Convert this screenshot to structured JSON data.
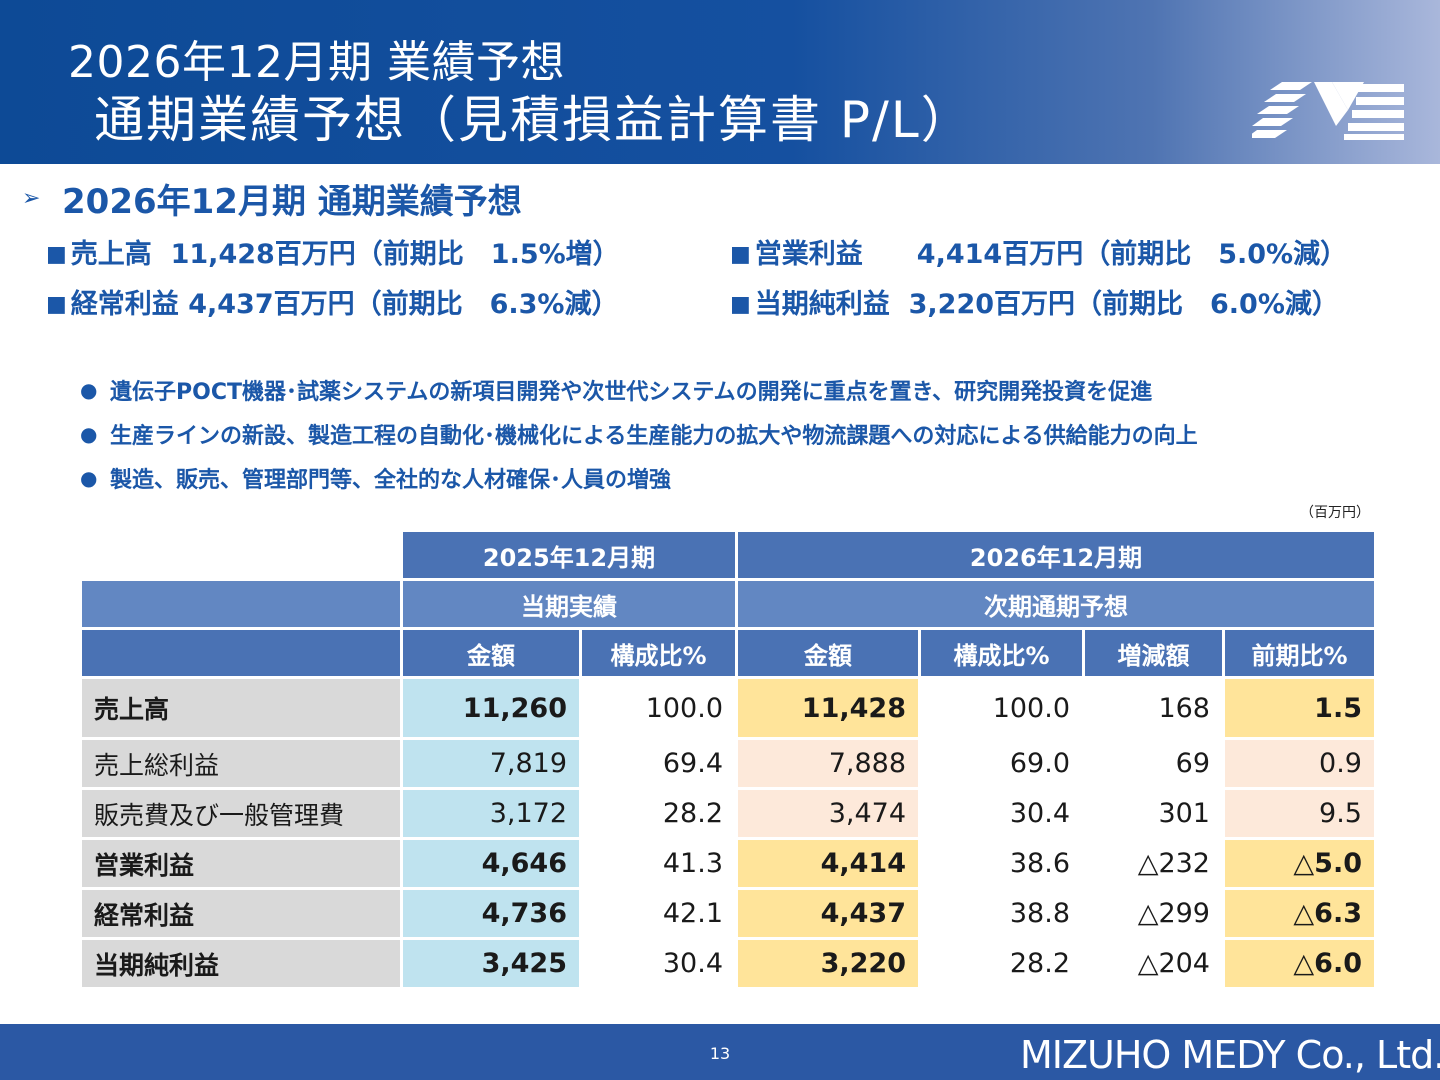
{
  "header": {
    "title_line1": "2026年12月期 業績予想",
    "title_line2": "通期業績予想（見積損益計算書 P/L）"
  },
  "section": {
    "arrow": "➢",
    "heading": "2026年12月期 通期業績予想"
  },
  "kpis": [
    {
      "marker": "■",
      "label": "売上高",
      "value": "11,428百万円（前期比　1.5%増）"
    },
    {
      "marker": "■",
      "label": "営業利益",
      "value": "4,414百万円（前期比　5.0%減）"
    },
    {
      "marker": "■",
      "label": "経常利益",
      "value": "4,437百万円（前期比　6.3%減）"
    },
    {
      "marker": "■",
      "label": "当期純利益",
      "value": "3,220百万円（前期比　6.0%減）"
    }
  ],
  "bullets": [
    {
      "marker": "●",
      "text": "遺伝子POCT機器･試薬システムの新項目開発や次世代システムの開発に重点を置き、研究開発投資を促進"
    },
    {
      "marker": "●",
      "text": "生産ラインの新設、製造工程の自動化･機械化による生産能力の拡大や物流課題への対応による供給能力の向上"
    },
    {
      "marker": "●",
      "text": "製造、販売、管理部門等、全社的な人材確保･人員の増強"
    }
  ],
  "table": {
    "unit": "（百万円）",
    "period_prev": "2025年12月期",
    "period_next": "2026年12月期",
    "sub_prev": "当期実績",
    "sub_next": "次期通期予想",
    "cols": [
      "金額",
      "構成比%",
      "金額",
      "構成比%",
      "増減額",
      "前期比%"
    ],
    "rows": [
      {
        "label": "売上高",
        "prev_amount": "11,260",
        "prev_ratio": "100.0",
        "next_amount": "11,428",
        "next_ratio": "100.0",
        "change": "168",
        "yoy": "1.5"
      },
      {
        "label": "売上総利益",
        "prev_amount": "7,819",
        "prev_ratio": "69.4",
        "next_amount": "7,888",
        "next_ratio": "69.0",
        "change": "69",
        "yoy": "0.9"
      },
      {
        "label": "販売費及び一般管理費",
        "prev_amount": "3,172",
        "prev_ratio": "28.2",
        "next_amount": "3,474",
        "next_ratio": "30.4",
        "change": "301",
        "yoy": "9.5"
      },
      {
        "label": "営業利益",
        "prev_amount": "4,646",
        "prev_ratio": "41.3",
        "next_amount": "4,414",
        "next_ratio": "38.6",
        "change": "△232",
        "yoy": "△5.0"
      },
      {
        "label": "経常利益",
        "prev_amount": "4,736",
        "prev_ratio": "42.1",
        "next_amount": "4,437",
        "next_ratio": "38.8",
        "change": "△299",
        "yoy": "△6.3"
      },
      {
        "label": "当期純利益",
        "prev_amount": "3,425",
        "prev_ratio": "30.4",
        "next_amount": "3,220",
        "next_ratio": "28.2",
        "change": "△204",
        "yoy": "△6.0"
      }
    ]
  },
  "footer": {
    "page_number": "13",
    "company": "MIZUHO MEDY Co., Ltd."
  },
  "colors": {
    "header_blue": "#0d4a96",
    "accent_blue": "#1b57a8",
    "table_header": "#4a72b4",
    "prev_highlight": "#bfe3ef",
    "next_highlight": "#ffe49a",
    "next_light": "#fde9da",
    "footer_blue": "#2b58a4"
  }
}
